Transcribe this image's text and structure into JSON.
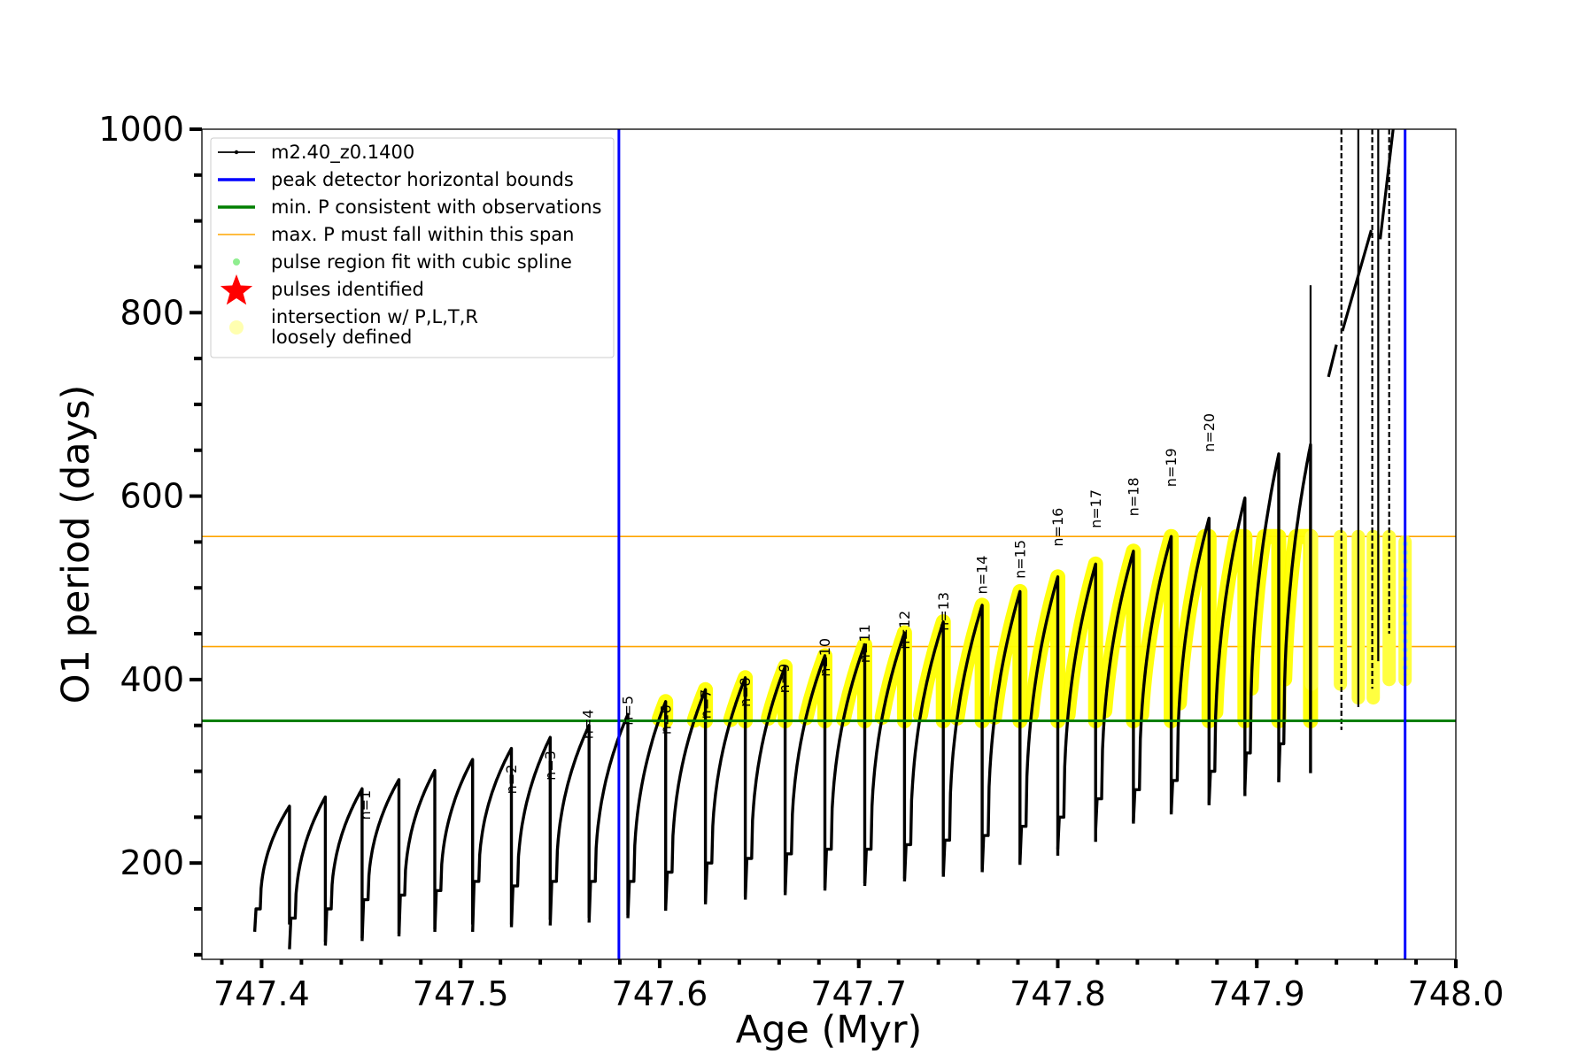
{
  "chart_data": {
    "type": "line",
    "title": "",
    "xlabel": "Age (Myr)",
    "ylabel": "O1 period (days)",
    "xlim": [
      747.37,
      748.0
    ],
    "ylim": [
      95,
      1000
    ],
    "xticks": [
      747.4,
      747.5,
      747.6,
      747.7,
      747.8,
      747.9,
      748.0
    ],
    "xtick_labels": [
      "747.4",
      "747.5",
      "747.6",
      "747.7",
      "747.8",
      "747.9",
      "748.0"
    ],
    "yticks": [
      200,
      400,
      600,
      800,
      1000
    ],
    "ytick_labels": [
      "200",
      "400",
      "600",
      "800",
      "1000"
    ],
    "legend_position": "top-left",
    "legend": [
      {
        "label": "m2.40_z0.1400",
        "kind": "line-marker",
        "color": "#000000"
      },
      {
        "label": "peak detector horizontal bounds",
        "kind": "line",
        "color": "#0000ff"
      },
      {
        "label": "min. P consistent with observations",
        "kind": "line",
        "color": "#007f00"
      },
      {
        "label": "max. P must fall within this span",
        "kind": "line",
        "color": "#ffa500"
      },
      {
        "label": "pulse region fit with cubic spline",
        "kind": "dot",
        "color": "#90ee90"
      },
      {
        "label": "pulses identified",
        "kind": "star",
        "color": "#ff0000"
      },
      {
        "label": "intersection w/ P,L,T,R",
        "label2": "loosely defined",
        "kind": "dot",
        "color": "#ffffb0"
      }
    ],
    "vertical_bounds": [
      747.5795,
      747.9745
    ],
    "min_period_line": 355,
    "max_period_span": [
      436,
      556
    ],
    "cycles": [
      {
        "start": 747.3965,
        "end": 747.414,
        "min": 125,
        "base": 150,
        "peak": 262
      },
      {
        "start": 747.414,
        "end": 747.432,
        "min": 106,
        "base": 140,
        "peak": 272
      },
      {
        "start": 747.432,
        "end": 747.4505,
        "min": 110,
        "base": 150,
        "peak": 281
      },
      {
        "start": 747.4505,
        "end": 747.469,
        "min": 115,
        "base": 160,
        "peak": 291
      },
      {
        "start": 747.469,
        "end": 747.487,
        "min": 120,
        "base": 165,
        "peak": 301
      },
      {
        "start": 747.487,
        "end": 747.506,
        "min": 125,
        "base": 170,
        "peak": 313
      },
      {
        "start": 747.506,
        "end": 747.5255,
        "min": 125,
        "base": 180,
        "peak": 325
      },
      {
        "start": 747.5255,
        "end": 747.545,
        "min": 130,
        "base": 175,
        "peak": 337
      },
      {
        "start": 747.545,
        "end": 747.5645,
        "min": 132,
        "base": 180,
        "peak": 350
      },
      {
        "start": 747.5645,
        "end": 747.584,
        "min": 135,
        "base": 180,
        "peak": 362
      },
      {
        "start": 747.584,
        "end": 747.603,
        "min": 140,
        "base": 180,
        "peak": 376
      },
      {
        "start": 747.603,
        "end": 747.623,
        "min": 150,
        "base": 190,
        "peak": 389
      },
      {
        "start": 747.623,
        "end": 747.643,
        "min": 155,
        "base": 200,
        "peak": 402
      },
      {
        "start": 747.643,
        "end": 747.663,
        "min": 160,
        "base": 205,
        "peak": 414
      },
      {
        "start": 747.663,
        "end": 747.683,
        "min": 165,
        "base": 210,
        "peak": 426
      },
      {
        "start": 747.683,
        "end": 747.703,
        "min": 170,
        "base": 215,
        "peak": 438
      },
      {
        "start": 747.703,
        "end": 747.723,
        "min": 175,
        "base": 215,
        "peak": 451
      },
      {
        "start": 747.723,
        "end": 747.7425,
        "min": 180,
        "base": 220,
        "peak": 463
      },
      {
        "start": 747.7425,
        "end": 747.762,
        "min": 185,
        "base": 225,
        "peak": 481
      },
      {
        "start": 747.762,
        "end": 747.781,
        "min": 190,
        "base": 230,
        "peak": 496
      },
      {
        "start": 747.781,
        "end": 747.8,
        "min": 200,
        "base": 240,
        "peak": 512
      },
      {
        "start": 747.8,
        "end": 747.819,
        "min": 215,
        "base": 250,
        "peak": 526
      },
      {
        "start": 747.819,
        "end": 747.838,
        "min": 235,
        "base": 270,
        "peak": 540
      },
      {
        "start": 747.838,
        "end": 747.857,
        "min": 245,
        "base": 280,
        "peak": 556
      },
      {
        "start": 747.857,
        "end": 747.876,
        "min": 255,
        "base": 290,
        "peak": 576
      },
      {
        "start": 747.876,
        "end": 747.894,
        "min": 265,
        "base": 300,
        "peak": 598
      },
      {
        "start": 747.894,
        "end": 747.911,
        "min": 280,
        "base": 320,
        "peak": 646
      },
      {
        "start": 747.911,
        "end": 747.927,
        "min": 290,
        "base": 330,
        "peak": 656
      }
    ],
    "late_spikes": [
      {
        "x": 747.927,
        "lo": 310,
        "hi": 830
      },
      {
        "x": 747.9425,
        "lo": 345,
        "hi": 1000
      },
      {
        "x": 747.951,
        "lo": 370,
        "hi": 1000
      },
      {
        "x": 747.958,
        "lo": 390,
        "hi": 1000
      },
      {
        "x": 747.961,
        "lo": 420,
        "hi": 1000
      },
      {
        "x": 747.9665,
        "lo": 450,
        "hi": 1000
      }
    ],
    "highlight_regions": [
      {
        "start": 747.5795,
        "end": 747.927,
        "lo": 355,
        "hi": 556
      },
      {
        "start": 747.927,
        "end": 747.975,
        "lo": 370,
        "hi": 556
      }
    ],
    "annotations": [
      {
        "text": "n=1",
        "x": 747.4545,
        "y": 247
      },
      {
        "text": "n=2",
        "x": 747.528,
        "y": 275
      },
      {
        "text": "n=3",
        "x": 747.5475,
        "y": 290
      },
      {
        "text": "n=4",
        "x": 747.5665,
        "y": 335
      },
      {
        "text": "n=5",
        "x": 747.5865,
        "y": 350
      },
      {
        "text": "n=6",
        "x": 747.6055,
        "y": 340
      },
      {
        "text": "n=7",
        "x": 747.6255,
        "y": 357
      },
      {
        "text": "n=8",
        "x": 747.6455,
        "y": 370
      },
      {
        "text": "n=9",
        "x": 747.665,
        "y": 385
      },
      {
        "text": "n=10",
        "x": 747.6855,
        "y": 403
      },
      {
        "text": "n=11",
        "x": 747.7055,
        "y": 418
      },
      {
        "text": "n=12",
        "x": 747.7255,
        "y": 433
      },
      {
        "text": "n=13",
        "x": 747.745,
        "y": 453
      },
      {
        "text": "n=14",
        "x": 747.7645,
        "y": 493
      },
      {
        "text": "n=15",
        "x": 747.7835,
        "y": 510
      },
      {
        "text": "n=16",
        "x": 747.8025,
        "y": 545
      },
      {
        "text": "n=17",
        "x": 747.8215,
        "y": 565
      },
      {
        "text": "n=18",
        "x": 747.8405,
        "y": 578
      },
      {
        "text": "n=19",
        "x": 747.8595,
        "y": 610
      },
      {
        "text": "n=20",
        "x": 747.8785,
        "y": 648
      }
    ]
  }
}
